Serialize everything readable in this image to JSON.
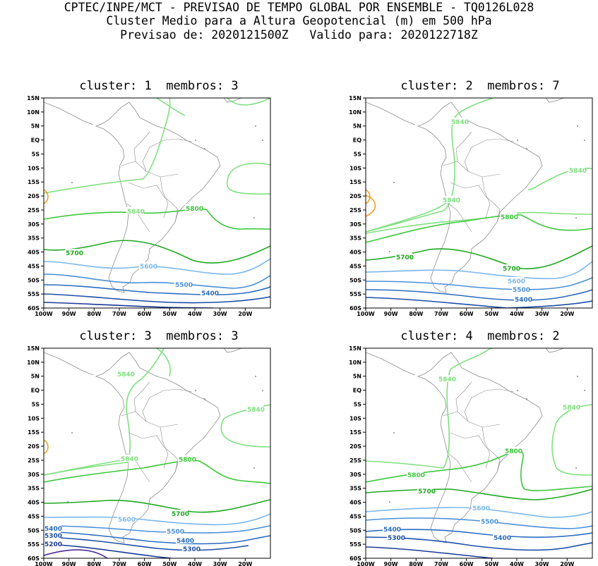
{
  "header": {
    "line1": "CPTEC/INPE/MCT - PREVISAO DE TEMPO GLOBAL POR ENSEMBLE - TQ0126L028",
    "line2": "Cluster Medio para a Altura Geopotencial (m) em 500 hPa",
    "line3": "Previsao de: 2020121500Z   Valido para: 2020122718Z"
  },
  "axes": {
    "lat_labels": [
      "15N",
      "10N",
      "5N",
      "EQ",
      "5S",
      "10S",
      "15S",
      "20S",
      "25S",
      "30S",
      "35S",
      "40S",
      "45S",
      "50S",
      "55S",
      "60S"
    ],
    "lon_labels": [
      "100W",
      "90W",
      "80W",
      "70W",
      "60W",
      "50W",
      "40W",
      "30W",
      "20W"
    ]
  },
  "colors": {
    "c5840": "#7fe07f",
    "c5800": "#3cc83c",
    "c5700": "#1fa81f",
    "c5600": "#7ab8ec",
    "c5500": "#4a90d8",
    "c5400": "#2a6cc0",
    "c5300": "#1c4ea8",
    "c5200": "#1a3a98",
    "c5100": "#4a2a9a",
    "c5880": "#f0a020",
    "coast": "#8c8c8c"
  },
  "panels": [
    {
      "title": "cluster: 1  membros: 3"
    },
    {
      "title": "cluster: 2  membros: 7"
    },
    {
      "title": "cluster: 3  membros: 3"
    },
    {
      "title": "cluster: 4  membros: 2"
    }
  ],
  "chart_data": [
    {
      "type": "map",
      "panel": 1,
      "title": "cluster: 1  membros: 3",
      "lon_range": [
        -100,
        -10
      ],
      "lat_range": [
        -60,
        15
      ],
      "contour_labels": [
        "5840",
        "5800",
        "5700",
        "5600",
        "5500",
        "5400"
      ]
    },
    {
      "type": "map",
      "panel": 2,
      "title": "cluster: 2  membros: 7",
      "lon_range": [
        -100,
        -10
      ],
      "lat_range": [
        -60,
        15
      ],
      "contour_labels": [
        "5840",
        "5840",
        "5840",
        "5800",
        "5700",
        "5700",
        "5600",
        "5500",
        "5400"
      ]
    },
    {
      "type": "map",
      "panel": 3,
      "title": "cluster: 3  membros: 3",
      "lon_range": [
        -100,
        -10
      ],
      "lat_range": [
        -60,
        15
      ],
      "contour_labels": [
        "5840",
        "5840",
        "5840",
        "5800",
        "5700",
        "5600",
        "5500",
        "5400",
        "5300",
        "5400",
        "5300",
        "5200"
      ]
    },
    {
      "type": "map",
      "panel": 4,
      "title": "cluster: 4  membros: 2",
      "lon_range": [
        -100,
        -10
      ],
      "lat_range": [
        -60,
        15
      ],
      "contour_labels": [
        "5840",
        "5840",
        "5840",
        "5800",
        "5800",
        "5700",
        "5600",
        "5500",
        "5400",
        "5400",
        "5300"
      ]
    }
  ]
}
